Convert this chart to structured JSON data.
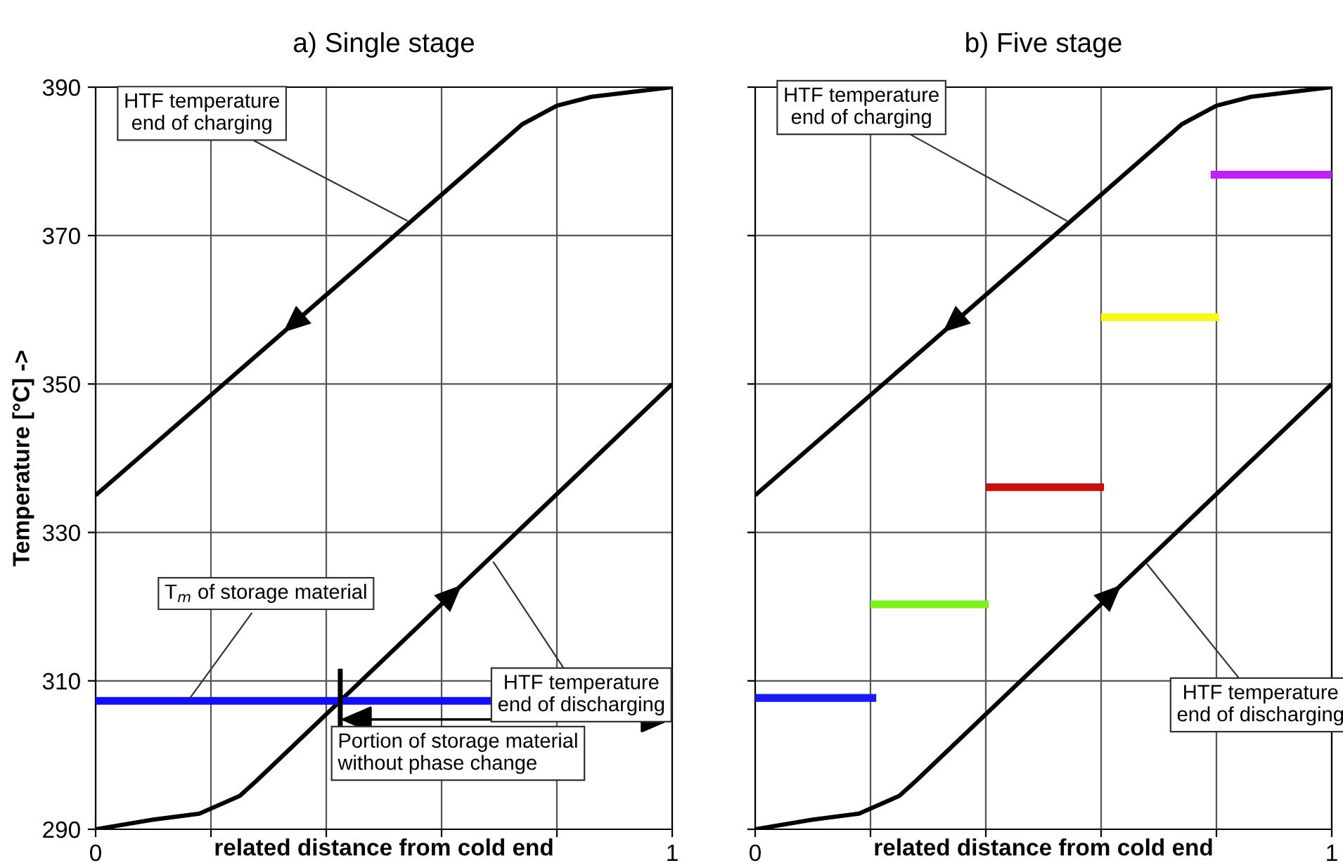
{
  "chart_data": [
    {
      "type": "line",
      "title": "a) Single stage",
      "xlabel": "related distance from cold end",
      "ylabel": "Temperature [°C] ->",
      "series": [
        {
          "color": "#000000",
          "x": [
            0,
            0.2,
            0.4,
            0.6,
            0.74,
            0.8,
            0.86,
            1
          ],
          "values": [
            335,
            348.5,
            362,
            375.5,
            385,
            387.5,
            388.7,
            390
          ]
        },
        {
          "color": "#000000",
          "x": [
            0,
            0.1,
            0.18,
            0.25,
            0.28,
            1
          ],
          "values": [
            290,
            291.3,
            292.1,
            294.5,
            296.6,
            350
          ]
        }
      ],
      "xlim": [
        0,
        1
      ],
      "ylim": [
        290,
        390
      ],
      "xticks": [
        0,
        {
          "value": 0.2,
          "label": null
        },
        {
          "value": 0.4,
          "label": null
        },
        {
          "value": 0.6,
          "label": null
        },
        {
          "value": 0.8,
          "label": null
        },
        1
      ],
      "yticks": [
        290,
        310,
        330,
        350,
        370,
        390
      ],
      "grid": true,
      "marker": "none",
      "line_style": "solid",
      "ref_lines": [
        {
          "axis": "y",
          "value": 307.3,
          "label": "T$_{m}$ of storage material",
          "color": "#1010f0"
        }
      ],
      "annotations": [
        {
          "text": "HTF temperature\nend of charging",
          "x": 0.54,
          "y": 372
        },
        {
          "text": "HTF temperature\nend of discharging",
          "x": 0.69,
          "y": 326
        },
        "Portion of storage material\nwithout phase change"
      ]
    },
    {
      "type": "line",
      "title": "b) Five stage",
      "xlabel": "related distance from cold end",
      "series": [
        {
          "color": "#000000",
          "x": [
            0,
            0.2,
            0.4,
            0.6,
            0.74,
            0.8,
            0.86,
            1
          ],
          "values": [
            335,
            348.5,
            362,
            375.5,
            385,
            387.5,
            388.7,
            390
          ]
        },
        {
          "color": "#000000",
          "x": [
            0,
            0.1,
            0.18,
            0.25,
            0.28,
            1
          ],
          "values": [
            290,
            291.3,
            292.1,
            294.5,
            296.6,
            350
          ]
        },
        {
          "color": "#1a1aee",
          "x": [
            0,
            0.21
          ],
          "values": [
            307.7,
            307.7
          ]
        },
        {
          "color": "#80f020",
          "x": [
            0.2,
            0.405
          ],
          "values": [
            320.3,
            320.3
          ]
        },
        {
          "color": "#c81010",
          "x": [
            0.4,
            0.605
          ],
          "values": [
            336.1,
            336.1
          ]
        },
        {
          "color": "#f8f820",
          "x": [
            0.6,
            0.805
          ],
          "values": [
            359,
            359
          ]
        },
        {
          "color": "#c020f0",
          "x": [
            0.79,
            1
          ],
          "values": [
            378.2,
            378.2
          ]
        }
      ],
      "xlim": [
        0,
        1
      ],
      "ylim": [
        290,
        390
      ],
      "xticks": [
        0,
        {
          "value": 0.2,
          "label": null
        },
        {
          "value": 0.4,
          "label": null
        },
        {
          "value": 0.6,
          "label": null
        },
        {
          "value": 0.8,
          "label": null
        },
        1
      ],
      "yticks": [
        290,
        310,
        330,
        350,
        370,
        390
      ],
      "tick_labels": "x",
      "grid": true,
      "marker": "none",
      "line_style": "solid",
      "annotations": [
        {
          "text": "HTF temperature\nend of charging",
          "x": 0.54,
          "y": 372
        },
        {
          "text": "HTF temperature\nend of discharging",
          "x": 0.68,
          "y": 325.7
        }
      ]
    }
  ]
}
